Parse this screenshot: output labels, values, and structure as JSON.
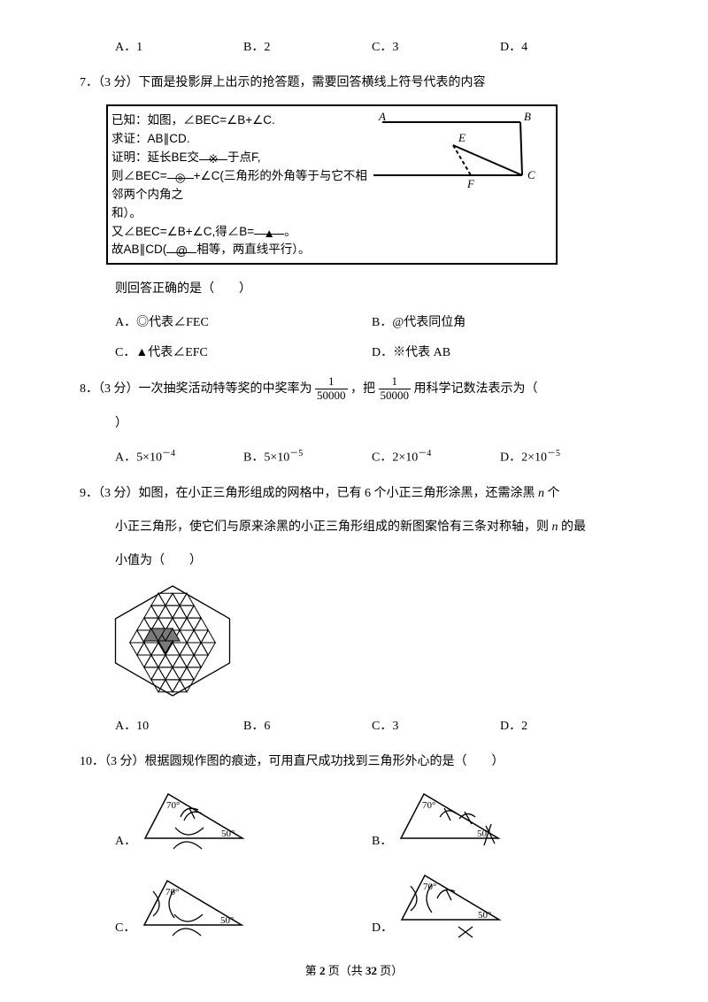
{
  "q6": {
    "options": {
      "A": "A．1",
      "B": "B．2",
      "C": "C．3",
      "D": "D．4"
    }
  },
  "q7": {
    "stem": "7．（3 分）下面是投影屏上出示的抢答题，需要回答横线上符号代表的内容",
    "proof": {
      "line1": "已知：如图，∠BEC=∠B+∠C.",
      "line2": "求证：AB∥CD.",
      "line3a": "证明：延长BE交",
      "line3b": "※",
      "line3c": "于点F,",
      "line4a": "则∠BEC=",
      "line4b": "◎",
      "line4c": "+∠C(三角形的外角等于与它不相邻两个内角之",
      "line5": "和）。",
      "line6a": "又∠BEC=∠B+∠C,得∠B=",
      "line6b": "▲",
      "line6c": "。",
      "line7a": "故AB∥CD(",
      "line7b": "@",
      "line7c": "相等，两直线平行）。",
      "labels": {
        "A": "A",
        "B": "B",
        "C": "C",
        "D": "D",
        "E": "E",
        "F": "F"
      }
    },
    "after": "则回答正确的是（　　）",
    "options": {
      "A": "A．◎代表∠FEC",
      "B": "B．@代表同位角",
      "C": "C．▲代表∠EFC",
      "D": "D．※代表 AB"
    }
  },
  "q8": {
    "stem_a": "8．（3 分）一次抽奖活动特等奖的中奖率为",
    "stem_b": "，把",
    "stem_c": "用科学记数法表示为（",
    "frac": {
      "num": "1",
      "den": "50000"
    },
    "close": "）",
    "options": {
      "A": "A．5×10",
      "Aexp": "－4",
      "B": "B．5×10",
      "Bexp": "－5",
      "C": "C．2×10",
      "Cexp": "－4",
      "D": "D．2×10",
      "Dexp": "－5"
    }
  },
  "q9": {
    "line1": "9．（3 分）如图，在小正三角形组成的网格中，已有 6 个小正三角形涂黑，还需涂黑 n 个",
    "line2": "小正三角形，使它们与原来涂黑的小正三角形组成的新图案恰有三条对称轴，则 n 的最",
    "line3": "小值为（　　）",
    "n_italic": "n",
    "options": {
      "A": "A．10",
      "B": "B．6",
      "C": "C．3",
      "D": "D．2"
    }
  },
  "q10": {
    "stem": "10．（3 分）根据圆规作图的痕迹，可用直尺成功找到三角形外心的是（　　）",
    "labels": {
      "A": "A．",
      "B": "B．",
      "C": "C．",
      "D": "D．"
    },
    "angles": {
      "top": "70°",
      "right": "50°"
    }
  },
  "footer": {
    "a": "第 ",
    "b": "2",
    "c": " 页（共 ",
    "d": "32",
    "e": " 页）"
  },
  "colors": {
    "text": "#000000",
    "line": "#000000",
    "shade": "#7a7a7a"
  }
}
